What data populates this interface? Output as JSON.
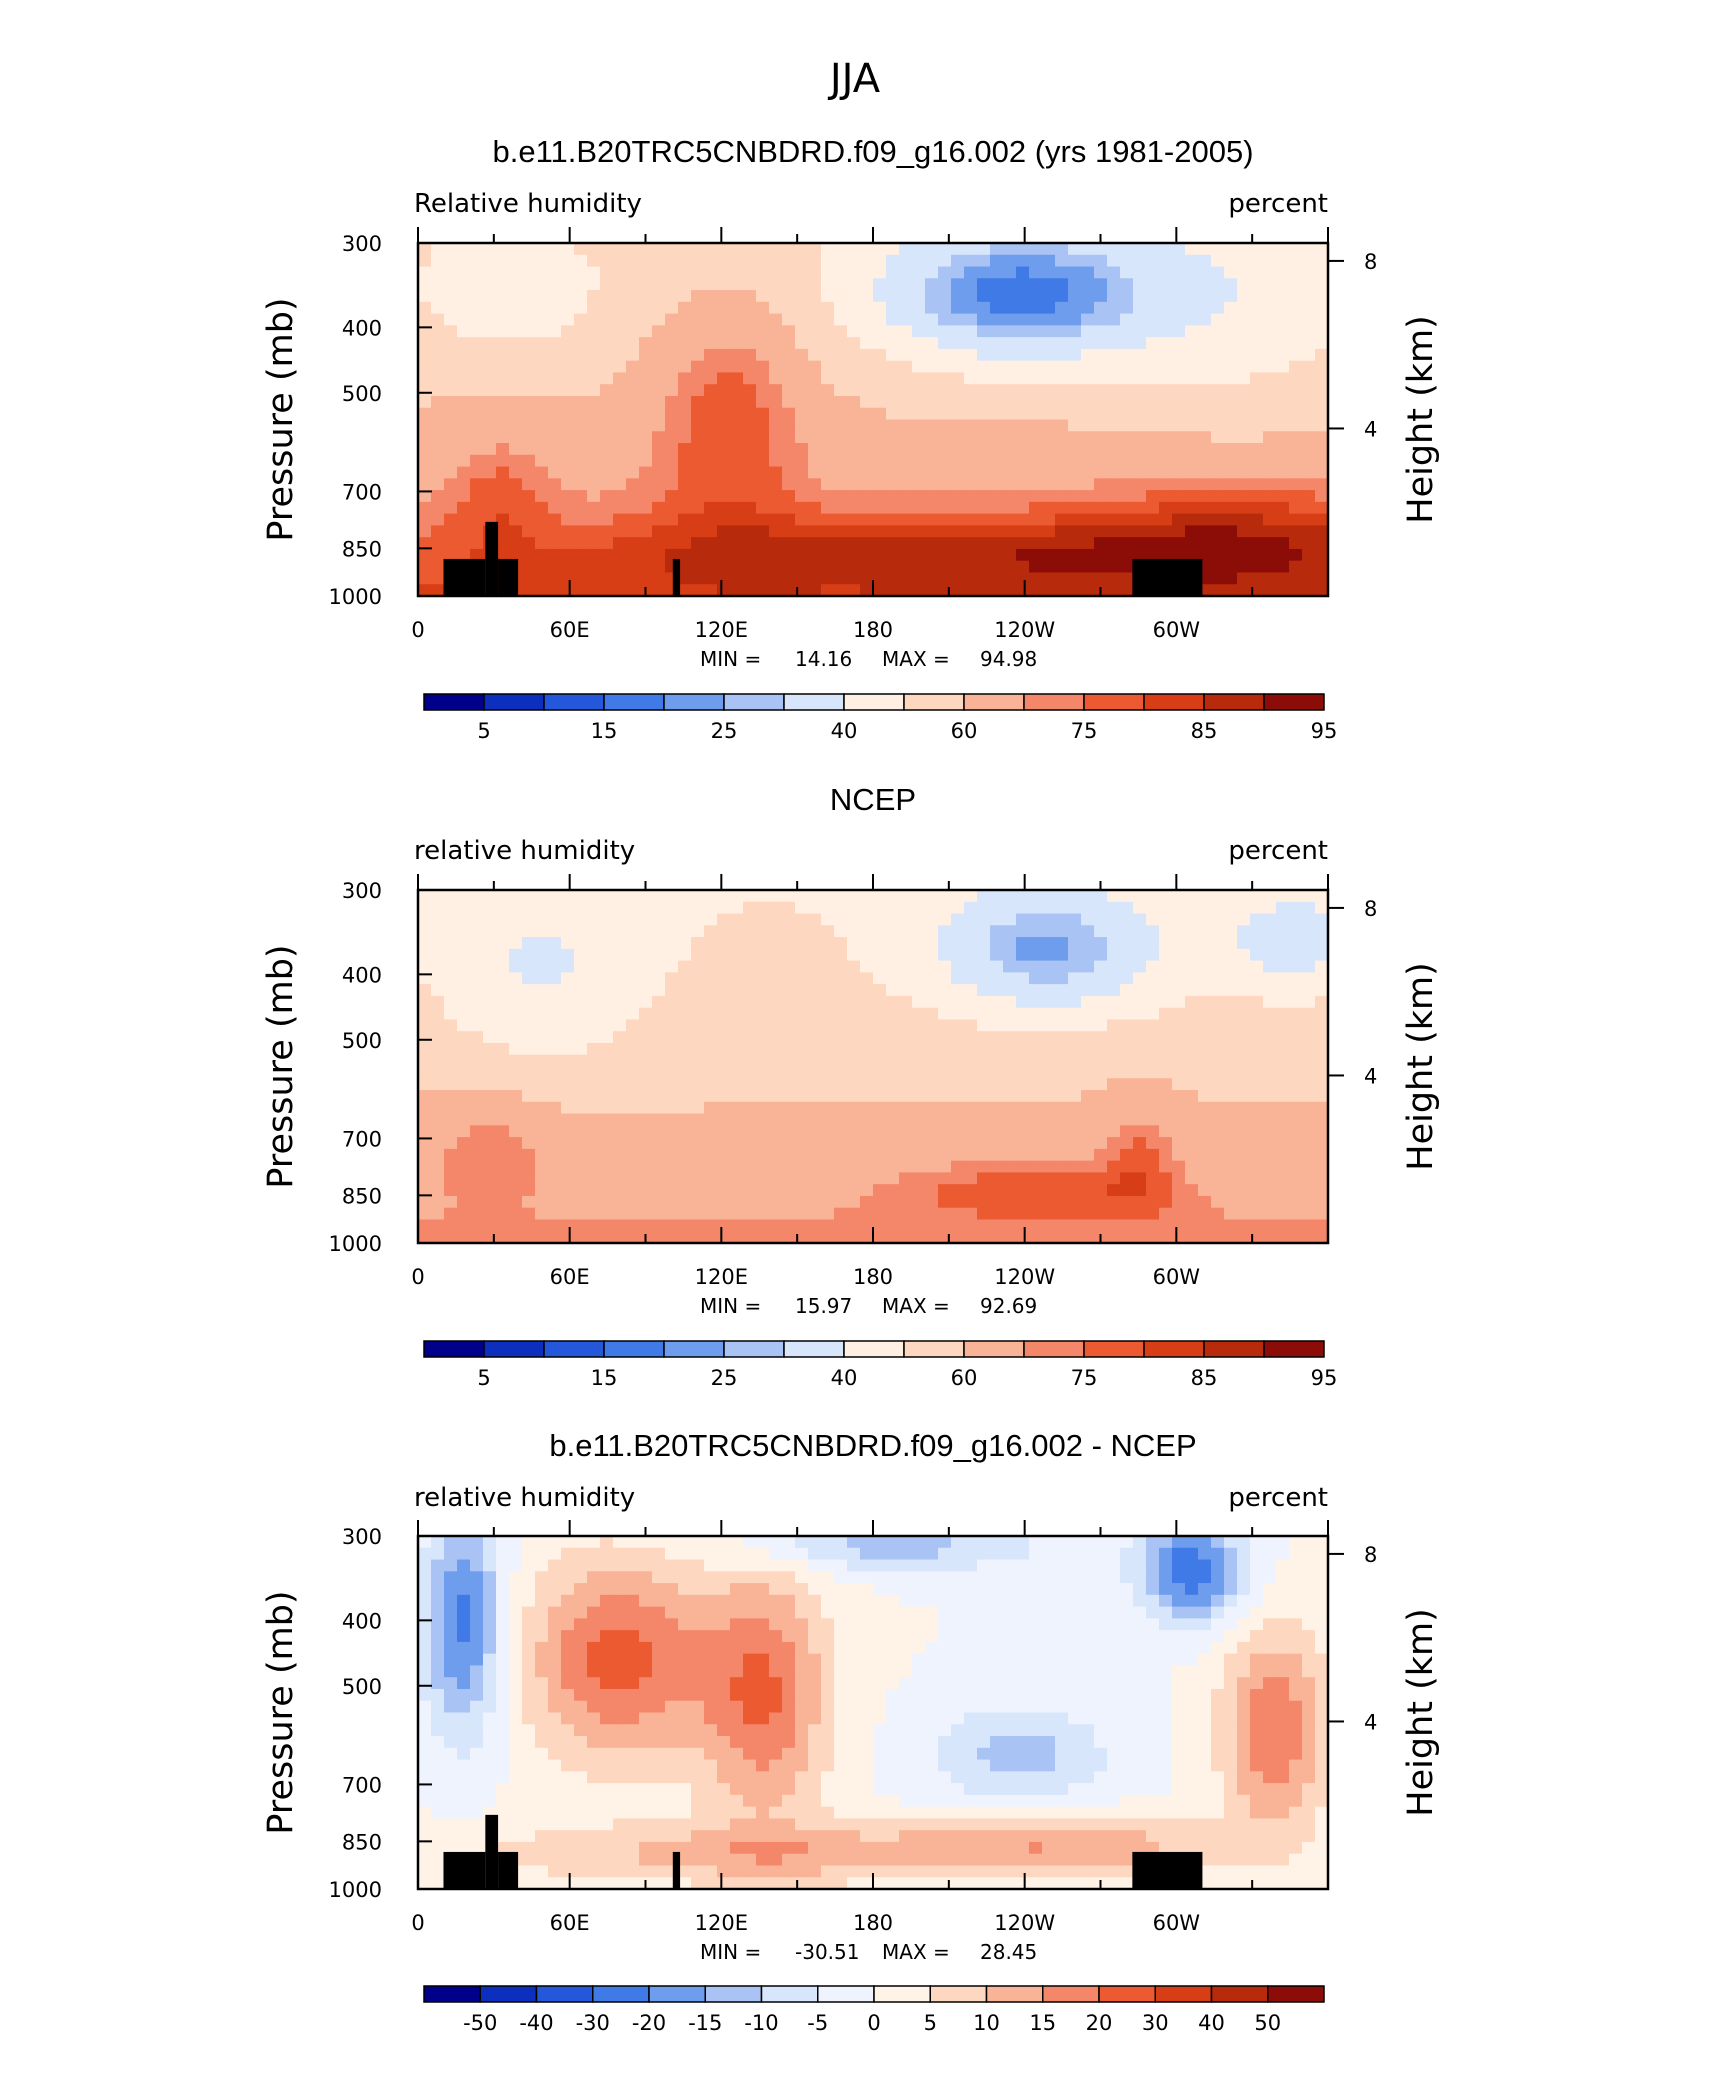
{
  "figure": {
    "title": "JJA"
  },
  "colors": {
    "rh": [
      "#00008b",
      "#0d2fbe",
      "#2457d9",
      "#3f7ae6",
      "#6f9ded",
      "#a9c4f4",
      "#d7e6fb",
      "#fff0e3",
      "#fdd7bf",
      "#f9b497",
      "#f4866a",
      "#ec5a32",
      "#d83e16",
      "#b82a0c",
      "#8c0d07"
    ],
    "diff": [
      "#00008b",
      "#0d2fbe",
      "#2457d9",
      "#3f7ae6",
      "#6f9ded",
      "#a9c4f4",
      "#d7e6fb",
      "#eef3fd",
      "#fff2e6",
      "#fdd7bf",
      "#f9b497",
      "#f4866a",
      "#ec5a32",
      "#d83e16",
      "#b82a0c",
      "#8c0d07"
    ]
  },
  "chart_data": [
    {
      "type": "heatmap",
      "title": "b.e11.B20TRC5CNBDRD.f09_g16.002 (yrs 1981-2005)",
      "left_label": "Relative  humidity",
      "right_label": "percent",
      "ylabel": "Pressure  (mb)",
      "ylabel_right": "Height  (km)",
      "x_ticks": [
        "0",
        "60E",
        "120E",
        "180",
        "120W",
        "60W"
      ],
      "y_ticks": [
        "300",
        "400",
        "500",
        "700",
        "850",
        "1000"
      ],
      "y_right_ticks": [
        "8",
        "4"
      ],
      "min_label": "MIN =",
      "min_value": "14.16",
      "max_label": "MAX =",
      "max_value": "94.98",
      "colorbar_labels": [
        "5",
        "15",
        "25",
        "40",
        "60",
        "75",
        "85",
        "95"
      ],
      "has_topography": true
    },
    {
      "type": "heatmap",
      "title": "NCEP",
      "left_label": "relative  humidity",
      "right_label": "percent",
      "ylabel": "Pressure  (mb)",
      "ylabel_right": "Height  (km)",
      "x_ticks": [
        "0",
        "60E",
        "120E",
        "180",
        "120W",
        "60W"
      ],
      "y_ticks": [
        "300",
        "400",
        "500",
        "700",
        "850",
        "1000"
      ],
      "y_right_ticks": [
        "8",
        "4"
      ],
      "min_label": "MIN =",
      "min_value": "15.97",
      "max_label": "MAX =",
      "max_value": "92.69",
      "colorbar_labels": [
        "5",
        "15",
        "25",
        "40",
        "60",
        "75",
        "85",
        "95"
      ],
      "has_topography": false
    },
    {
      "type": "heatmap",
      "title": "b.e11.B20TRC5CNBDRD.f09_g16.002 - NCEP",
      "left_label": "relative  humidity",
      "right_label": "percent",
      "ylabel": "Pressure  (mb)",
      "ylabel_right": "Height  (km)",
      "x_ticks": [
        "0",
        "60E",
        "120E",
        "180",
        "120W",
        "60W"
      ],
      "y_ticks": [
        "300",
        "400",
        "500",
        "700",
        "850",
        "1000"
      ],
      "y_right_ticks": [
        "8",
        "4"
      ],
      "min_label": "MIN =",
      "min_value": "-30.51",
      "max_label": "MAX =",
      "max_value": "28.45",
      "colorbar_labels": [
        "-50",
        "-40",
        "-30",
        "-20",
        "-15",
        "-10",
        "-5",
        "0",
        "5",
        "10",
        "15",
        "20",
        "30",
        "40",
        "50"
      ],
      "has_topography": true
    }
  ]
}
